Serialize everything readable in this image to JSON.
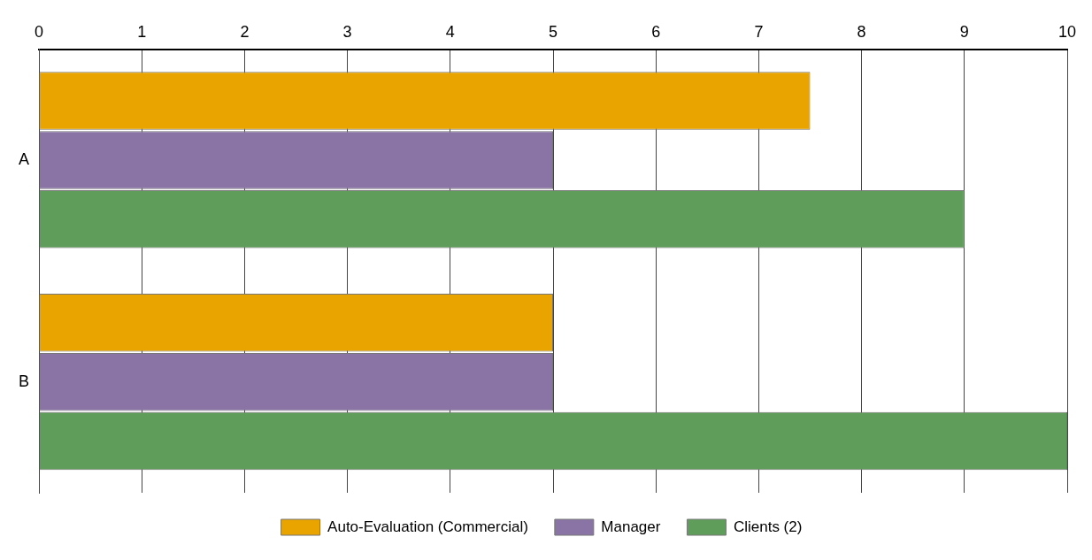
{
  "chart_data": {
    "type": "bar",
    "orientation": "horizontal",
    "categories": [
      "A",
      "B"
    ],
    "series": [
      {
        "name": "Auto-Evaluation (Commercial)",
        "color": "#e9a400",
        "values": [
          7.5,
          5
        ]
      },
      {
        "name": "Manager",
        "color": "#8a74a6",
        "values": [
          5,
          5
        ]
      },
      {
        "name": "Clients (2)",
        "color": "#5f9e5a",
        "values": [
          9,
          10
        ]
      }
    ],
    "xlim": [
      0,
      10
    ],
    "xticks": [
      0,
      1,
      2,
      3,
      4,
      5,
      6,
      7,
      8,
      9,
      10
    ],
    "grid": "x",
    "legend": "bottom"
  }
}
